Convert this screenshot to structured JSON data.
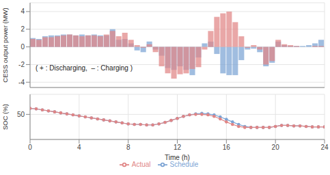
{
  "chart_data": [
    {
      "type": "bar",
      "y_label": "CESS output power (MW)",
      "annotation": "( + : Discharging,  – : Charging )",
      "x": [
        0.25,
        0.75,
        1.25,
        1.75,
        2.25,
        2.75,
        3.25,
        3.75,
        4.25,
        4.75,
        5.25,
        5.75,
        6.25,
        6.75,
        7.25,
        7.75,
        8.25,
        8.75,
        9.25,
        9.75,
        10.25,
        10.75,
        11.25,
        11.75,
        12.25,
        12.75,
        13.25,
        13.75,
        14.25,
        14.75,
        15.25,
        15.75,
        16.25,
        16.75,
        17.25,
        17.75,
        18.25,
        18.75,
        19.25,
        19.75,
        20.25,
        20.75,
        21.25,
        21.75,
        22.25,
        22.75,
        23.25,
        23.75
      ],
      "series": [
        {
          "name": "Schedule",
          "color": "#7ba3d4",
          "values": [
            1.0,
            0.9,
            1.2,
            1.3,
            1.3,
            1.4,
            1.4,
            1.3,
            1.4,
            1.3,
            1.4,
            1.3,
            1.3,
            2.0,
            0.8,
            0.9,
            0.4,
            -0.4,
            -0.6,
            0.6,
            -0.3,
            -1.0,
            -2.4,
            -2.6,
            -2.2,
            -2.6,
            -3.2,
            -1.2,
            0.4,
            0.6,
            -0.8,
            -3.0,
            -3.2,
            -3.2,
            -1.5,
            -0.3,
            -0.2,
            -0.6,
            -2.2,
            -1.8,
            0.6,
            0.2,
            0.1,
            0.1,
            0.1,
            0.2,
            0.4,
            0.8
          ]
        },
        {
          "name": "Actual",
          "color": "#e08585",
          "values": [
            0.9,
            0.8,
            1.1,
            1.1,
            1.2,
            1.3,
            1.4,
            1.3,
            1.2,
            1.3,
            1.3,
            1.2,
            1.4,
            1.8,
            1.2,
            1.6,
            0.8,
            0.2,
            -0.1,
            0.3,
            -0.6,
            -2.2,
            -3.0,
            -3.6,
            -3.1,
            -3.0,
            -2.5,
            -2.3,
            -0.3,
            1.8,
            3.4,
            3.8,
            4.0,
            2.8,
            1.2,
            -0.1,
            0.2,
            -0.3,
            -2.0,
            -1.6,
            0.8,
            0.3,
            0.2,
            0.1,
            0.0,
            0.0,
            0.1,
            0.1
          ]
        }
      ],
      "xlim": [
        0,
        24
      ],
      "xticks": [
        0,
        4,
        8,
        12,
        16,
        20,
        24
      ],
      "ylim": [
        -4.6,
        5
      ],
      "yticks": [
        -4,
        -2,
        0,
        2,
        4
      ],
      "grid": true,
      "tick_labels": "y"
    },
    {
      "type": "line",
      "x_label": "Time (h)",
      "y_label": "SOC (%)",
      "x": [
        0,
        0.5,
        1,
        1.5,
        2,
        2.5,
        3,
        3.5,
        4,
        4.5,
        5,
        5.5,
        6,
        6.5,
        7,
        7.5,
        8,
        8.5,
        9,
        9.5,
        10,
        10.5,
        11,
        11.5,
        12,
        12.5,
        13,
        13.5,
        14,
        14.5,
        15,
        15.5,
        16,
        16.5,
        17,
        17.5,
        18,
        18.5,
        19,
        19.5,
        20,
        20.5,
        21,
        21.5,
        22,
        22.5,
        23,
        23.5,
        24
      ],
      "series": [
        {
          "name": "Schedule",
          "color": "#7ba3d4",
          "marker": "circle",
          "line_style": "solid",
          "values": [
            62,
            61,
            59,
            57,
            55,
            53,
            51,
            49,
            47,
            45,
            43,
            41,
            39,
            37,
            35,
            33,
            31,
            30,
            30,
            29,
            29,
            31,
            34,
            38,
            42,
            46,
            49,
            51,
            52,
            51,
            49,
            45,
            40,
            35,
            30,
            26,
            24,
            24,
            24,
            24,
            26,
            28,
            28,
            27,
            27,
            26,
            25,
            25,
            25
          ]
        },
        {
          "name": "Actual",
          "color": "#e08585",
          "marker": "circle",
          "line_style": "solid",
          "values": [
            62,
            61,
            59,
            57,
            55,
            53,
            51,
            49,
            47,
            45,
            43,
            41,
            39,
            37,
            35,
            33,
            31,
            30,
            30,
            29,
            29,
            31,
            34,
            38,
            42,
            46,
            49,
            50,
            50,
            49,
            46,
            41,
            35,
            30,
            26,
            24,
            24,
            24,
            24,
            24,
            26,
            28,
            28,
            27,
            27,
            26,
            25,
            25,
            25
          ]
        }
      ],
      "xlim": [
        0,
        24
      ],
      "xticks": [
        0,
        4,
        8,
        12,
        16,
        20,
        24
      ],
      "ylim": [
        0,
        90
      ],
      "yticks": [
        50
      ],
      "grid": true,
      "legend": "bottom"
    }
  ]
}
